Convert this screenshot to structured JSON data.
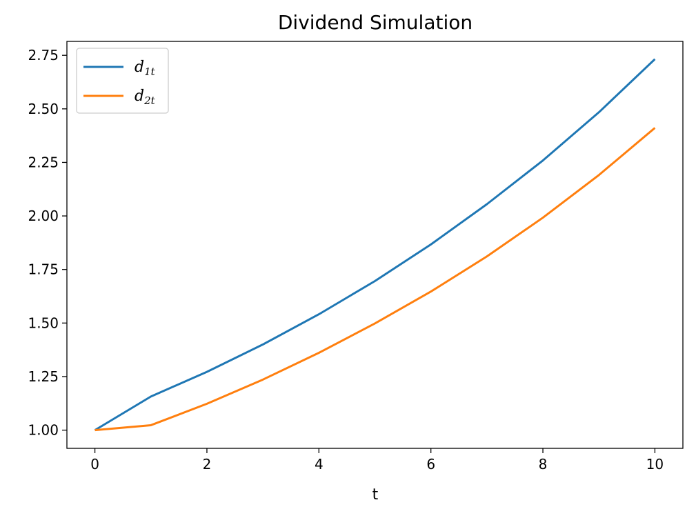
{
  "chart_data": {
    "type": "line",
    "title": "Dividend Simulation",
    "xlabel": "t",
    "ylabel": "",
    "xlim": [
      -0.5,
      10.5
    ],
    "ylim": [
      0.915,
      2.815
    ],
    "xticks": [
      0,
      2,
      4,
      6,
      8,
      10
    ],
    "yticks": [
      1.0,
      1.25,
      1.5,
      1.75,
      2.0,
      2.25,
      2.5,
      2.75
    ],
    "xtick_labels": [
      "0",
      "2",
      "4",
      "6",
      "8",
      "10"
    ],
    "ytick_labels": [
      "1.00",
      "1.25",
      "1.50",
      "1.75",
      "2.00",
      "2.25",
      "2.50",
      "2.75"
    ],
    "grid": false,
    "legend_position": "top-left",
    "x": [
      0,
      1,
      2,
      3,
      4,
      5,
      6,
      7,
      8,
      9,
      10
    ],
    "series": [
      {
        "name": "d1t",
        "label_main": "d",
        "label_sub": "1t",
        "color": "#1f77b4",
        "values": [
          1.0,
          1.157,
          1.272,
          1.4,
          1.541,
          1.696,
          1.867,
          2.055,
          2.259,
          2.484,
          2.732
        ]
      },
      {
        "name": "d2t",
        "label_main": "d",
        "label_sub": "2t",
        "color": "#ff7f0e",
        "values": [
          1.0,
          1.023,
          1.123,
          1.236,
          1.361,
          1.498,
          1.647,
          1.811,
          1.992,
          2.191,
          2.411
        ]
      }
    ]
  }
}
